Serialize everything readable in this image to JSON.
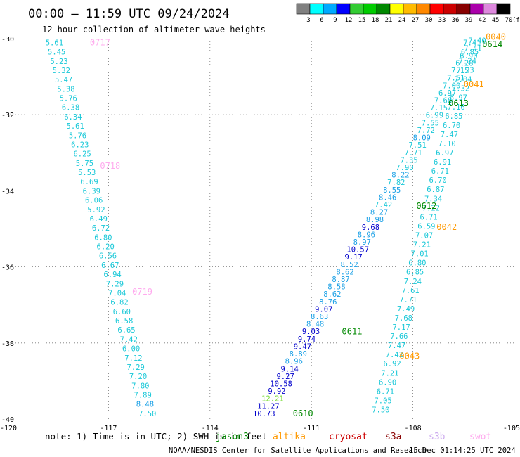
{
  "header": {
    "title": "00:00 – 11:59 UTC 09/24/2024",
    "subtitle": "12 hour collection of altimeter wave heights"
  },
  "colorbar": {
    "labels": [
      "3",
      "6",
      "9",
      "12",
      "15",
      "18",
      "21",
      "24",
      "27",
      "30",
      "33",
      "36",
      "39",
      "42",
      "45",
      "70",
      "(ft)"
    ],
    "colors": [
      "#808080",
      "#00ffff",
      "#00aaff",
      "#0000ff",
      "#33cc33",
      "#00cc00",
      "#008800",
      "#ffff00",
      "#ffbb00",
      "#ff8800",
      "#ff0000",
      "#cc0000",
      "#880000",
      "#aa00aa",
      "#dd88dd",
      "#000000"
    ]
  },
  "footer": {
    "note": "note: 1) Time is in UTC; 2) SWH is in feet",
    "credit": "NOAA/NESDIS Center for Satellite Applications and Research",
    "timestamp": "15 Dec 01:14:25 UTC 2024",
    "satellites": [
      {
        "name": "jason3",
        "color": "#008800"
      },
      {
        "name": "altika",
        "color": "#ff9900"
      },
      {
        "name": "cryosat",
        "color": "#cc0000"
      },
      {
        "name": "s3a",
        "color": "#880000"
      },
      {
        "name": "s3b",
        "color": "#ccaaee"
      },
      {
        "name": "swot",
        "color": "#ffaaee"
      }
    ]
  },
  "chart_data": {
    "type": "scatter",
    "xlim": [
      -120,
      -105
    ],
    "ylim": [
      -40,
      -30
    ],
    "x_ticks": [
      "-120",
      "-117",
      "-114",
      "-111",
      "-108",
      "-105"
    ],
    "y_ticks": [
      "-30",
      "-32",
      "-34",
      "-36",
      "-38",
      "-40"
    ],
    "tracks": [
      {
        "satellite": "swot",
        "color": "#ffaaee",
        "passes": [
          {
            "label": "0717",
            "lon": -117.55,
            "lat": -30.1
          },
          {
            "label": "0718",
            "lon": -117.25,
            "lat": -33.35
          },
          {
            "label": "0719",
            "lon": -116.3,
            "lat": -36.65
          }
        ],
        "start": [
          -118.6,
          -30.1
        ],
        "end": [
          -115.85,
          -39.85
        ],
        "values": [
          "5.61",
          "5.45",
          "5.23",
          "5.32",
          "5.47",
          "5.38",
          "5.76",
          "6.38",
          "6.34",
          "5.61",
          "5.76",
          "6.23",
          "6.25",
          "5.75",
          "5.53",
          "6.69",
          "6.39",
          "6.06",
          "5.92",
          "6.49",
          "6.72",
          "6.80",
          "6.20",
          "6.56",
          "6.67",
          "6.94",
          "7.29",
          "7.04",
          "6.82",
          "6.60",
          "6.58",
          "6.65",
          "7.42",
          "6.00",
          "7.12",
          "7.29",
          "7.20",
          "7.80",
          "7.89",
          "8.48",
          "7.50"
        ]
      },
      {
        "satellite": "jason3",
        "color": "#008800",
        "passes": [
          {
            "label": "0610",
            "lon": -111.55,
            "lat": -39.85
          },
          {
            "label": "0611",
            "lon": -110.1,
            "lat": -37.7
          },
          {
            "label": "0612",
            "lon": -107.9,
            "lat": -34.4
          },
          {
            "label": "0613",
            "lon": -106.95,
            "lat": -31.7
          },
          {
            "label": "0614",
            "lon": -105.95,
            "lat": -30.15
          }
        ],
        "start": [
          -112.4,
          -39.85
        ],
        "end": [
          -106.1,
          -30.05
        ],
        "values": [
          "10.73",
          "11.27",
          "12.21",
          "9.92",
          "10.58",
          "9.27",
          "9.14",
          "8.96",
          "8.89",
          "9.47",
          "9.74",
          "9.03",
          "8.48",
          "8.63",
          "9.07",
          "8.76",
          "8.62",
          "8.58",
          "8.87",
          "8.62",
          "8.52",
          "9.17",
          "10.57",
          "8.97",
          "8.96",
          "9.68",
          "8.98",
          "8.27",
          "7.42",
          "8.46",
          "8.55",
          "7.82",
          "8.22",
          "7.90",
          "7.35",
          "7.71",
          "7.51",
          "8.09",
          "7.72",
          "7.55",
          "6.99",
          "7.15",
          "7.68",
          "6.97",
          "7.00",
          "7.51",
          "7.15",
          "6.28",
          "6.90",
          "7.41",
          "7.40"
        ]
      },
      {
        "satellite": "altika",
        "color": "#ff9900",
        "passes": [
          {
            "label": "0040",
            "lon": -105.85,
            "lat": -29.95
          },
          {
            "label": "0041",
            "lon": -106.5,
            "lat": -31.2
          },
          {
            "label": "0042",
            "lon": -107.3,
            "lat": -34.95
          },
          {
            "label": "0043",
            "lon": -108.4,
            "lat": -38.35
          }
        ],
        "start": [
          -108.95,
          -39.75
        ],
        "end": [
          -106.25,
          -30.1
        ],
        "values": [
          "7.50",
          "7.05",
          "6.71",
          "6.90",
          "7.21",
          "6.92",
          "7.42",
          "7.47",
          "7.66",
          "7.17",
          "7.68",
          "7.49",
          "7.71",
          "7.61",
          "7.24",
          "6.85",
          "6.80",
          "7.01",
          "7.21",
          "7.07",
          "6.59",
          "6.71",
          "7.22",
          "7.34",
          "6.87",
          "6.70",
          "6.71",
          "6.91",
          "6.97",
          "7.10",
          "7.47",
          "6.70",
          "6.85",
          "7.16",
          "6.97",
          "7.32",
          "7.04",
          "7.23",
          "7.24",
          "6.85",
          "7.41"
        ]
      }
    ]
  }
}
